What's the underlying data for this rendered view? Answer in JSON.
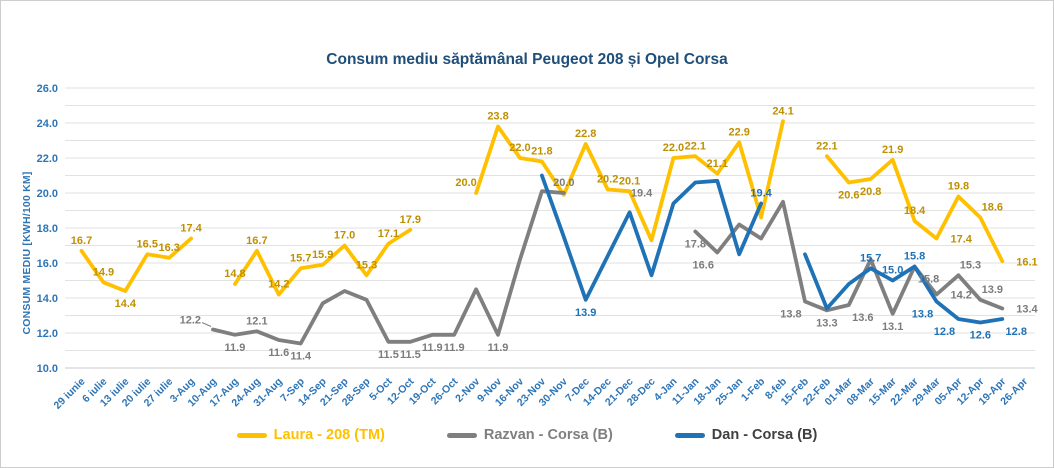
{
  "chart": {
    "title": "Consum mediu săptămânal Peugeot 208 și Opel Corsa",
    "y_axis_title": "CONSUM MEDIU [KWH/100 KM]",
    "title_color": "#1F4E79",
    "axis_color": "#2E75B6"
  },
  "chart_data": {
    "type": "line",
    "title": "Consum mediu săptămânal Peugeot 208 și Opel Corsa",
    "xlabel": "",
    "ylabel": "CONSUM MEDIU [KWH/100 KM]",
    "ylim": [
      10.0,
      26.0
    ],
    "y_tick_step": 2.0,
    "grid": true,
    "legend_position": "bottom",
    "y_ticks": [
      "10.0",
      "12.0",
      "14.0",
      "16.0",
      "18.0",
      "20.0",
      "22.0",
      "24.0",
      "26.0"
    ],
    "categories": [
      "29 iunie",
      "6 iulie",
      "13 iulie",
      "20 iulie",
      "27 iulie",
      "3-Aug",
      "10-Aug",
      "17-Aug",
      "24-Aug",
      "31-Aug",
      "7-Sep",
      "14-Sep",
      "21-Sep",
      "28-Sep",
      "5-Oct",
      "12-Oct",
      "19-Oct",
      "26-Oct",
      "2-Nov",
      "9-Nov",
      "16-Nov",
      "23-Nov",
      "30-Nov",
      "7-Dec",
      "14-Dec",
      "21-Dec",
      "28-Dec",
      "4-Jan",
      "11-Jan",
      "18-Jan",
      "25-Jan",
      "1-Feb",
      "8-feb",
      "15-Feb",
      "22-Feb",
      "01-Mar",
      "08-Mar",
      "15-Mar",
      "22-Mar",
      "29-Mar",
      "05-Apr",
      "12-Apr",
      "19-Apr",
      "26-Apr"
    ],
    "point_format": "[category_index, value, visible_data_label_or_null, label_position_hint]",
    "series": [
      {
        "name": "Laura - 208 (TM)",
        "color": "#FFC000",
        "label_color": "#BF9000",
        "legend_text_color": "#FFC000",
        "points": [
          [
            0,
            16.7,
            "16.7",
            "a"
          ],
          [
            1,
            14.9,
            "14.9",
            "a"
          ],
          [
            2,
            14.4,
            "14.4",
            "b"
          ],
          [
            3,
            16.5,
            "16.5",
            "a"
          ],
          [
            4,
            16.3,
            "16.3",
            "a"
          ],
          [
            5,
            17.4,
            "17.4",
            "a"
          ],
          [
            7,
            14.8,
            "14.8",
            "a"
          ],
          [
            8,
            16.7,
            "16.7",
            "a"
          ],
          [
            9,
            14.2,
            "14.2",
            "a"
          ],
          [
            10,
            15.7,
            "15.7",
            "a"
          ],
          [
            11,
            15.9,
            "15.9",
            "a"
          ],
          [
            12,
            17.0,
            "17.0",
            "a"
          ],
          [
            13,
            15.3,
            "15.3",
            "a"
          ],
          [
            14,
            17.1,
            "17.1",
            "a"
          ],
          [
            15,
            17.9,
            "17.9",
            "a"
          ],
          [
            18,
            20.0,
            "20.0",
            "al"
          ],
          [
            19,
            23.8,
            "23.8",
            "a"
          ],
          [
            20,
            22.0,
            "22.0",
            "a"
          ],
          [
            21,
            21.8,
            "21.8",
            "a"
          ],
          [
            22,
            19.9,
            null,
            null
          ],
          [
            23,
            22.8,
            "22.8",
            "a"
          ],
          [
            24,
            20.2,
            "20.2",
            "a"
          ],
          [
            25,
            20.1,
            "20.1",
            "a"
          ],
          [
            26,
            17.3,
            null,
            null
          ],
          [
            27,
            22.0,
            "22.0",
            "a"
          ],
          [
            28,
            22.1,
            "22.1",
            "a"
          ],
          [
            29,
            21.1,
            "21.1",
            "a"
          ],
          [
            30,
            22.9,
            "22.9",
            "a"
          ],
          [
            31,
            18.6,
            null,
            null
          ],
          [
            32,
            24.1,
            "24.1",
            "a"
          ],
          [
            34,
            22.1,
            "22.1",
            "a"
          ],
          [
            35,
            20.6,
            "20.6",
            "b"
          ],
          [
            36,
            20.8,
            "20.8",
            "b"
          ],
          [
            37,
            21.9,
            "21.9",
            "a"
          ],
          [
            38,
            18.4,
            "18.4",
            "a"
          ],
          [
            39,
            17.4,
            "17.4",
            "r"
          ],
          [
            40,
            19.8,
            "19.8",
            "a"
          ],
          [
            41,
            18.6,
            "18.6",
            "ar"
          ],
          [
            42,
            16.1,
            "16.1",
            "r"
          ]
        ]
      },
      {
        "name": "Razvan - Corsa (B)",
        "color": "#7F7F7F",
        "label_color": "#7C7C7C",
        "legend_text_color": "#7F7F7F",
        "points": [
          [
            6,
            12.2,
            "12.2",
            "ld"
          ],
          [
            7,
            11.9,
            "11.9",
            "b"
          ],
          [
            8,
            12.1,
            "12.1",
            "a"
          ],
          [
            9,
            11.6,
            "11.6",
            "b"
          ],
          [
            10,
            11.4,
            "11.4",
            "b"
          ],
          [
            11,
            13.7,
            null,
            null
          ],
          [
            12,
            14.4,
            null,
            null
          ],
          [
            13,
            13.9,
            null,
            null
          ],
          [
            14,
            11.5,
            "11.5",
            "b"
          ],
          [
            15,
            11.5,
            "11.5",
            "b"
          ],
          [
            16,
            11.9,
            "11.9",
            "b"
          ],
          [
            17,
            11.9,
            "11.9",
            "b"
          ],
          [
            18,
            14.5,
            null,
            null
          ],
          [
            19,
            11.9,
            "11.9",
            "b"
          ],
          [
            20,
            16.2,
            null,
            null
          ],
          [
            21,
            20.1,
            null,
            null
          ],
          [
            22,
            20.0,
            "20.0",
            "a"
          ],
          [
            25,
            19.4,
            "19.4",
            "ar"
          ],
          [
            28,
            17.8,
            "17.8",
            "b"
          ],
          [
            29,
            16.6,
            "16.6",
            "bl"
          ],
          [
            30,
            18.2,
            null,
            null
          ],
          [
            31,
            17.4,
            null,
            null
          ],
          [
            32,
            19.5,
            null,
            null
          ],
          [
            33,
            13.8,
            "13.8",
            "bl"
          ],
          [
            34,
            13.3,
            "13.3",
            "b"
          ],
          [
            35,
            13.6,
            "13.6",
            "br"
          ],
          [
            36,
            16.2,
            null,
            null
          ],
          [
            37,
            13.1,
            "13.1",
            "b"
          ],
          [
            38,
            15.8,
            "15.8",
            "br"
          ],
          [
            39,
            14.2,
            "14.2",
            "r"
          ],
          [
            40,
            15.3,
            "15.3",
            "ar"
          ],
          [
            41,
            13.9,
            "13.9",
            "ar"
          ],
          [
            42,
            13.4,
            "13.4",
            "r"
          ]
        ]
      },
      {
        "name": "Dan - Corsa (B)",
        "color": "#1F72B6",
        "label_color": "#1F72B6",
        "legend_text_color": "#404040",
        "points": [
          [
            21,
            21.0,
            null,
            null
          ],
          [
            22,
            17.5,
            null,
            null
          ],
          [
            23,
            13.9,
            "13.9",
            "b"
          ],
          [
            24,
            16.4,
            null,
            null
          ],
          [
            25,
            18.9,
            null,
            null
          ],
          [
            26,
            15.3,
            null,
            null
          ],
          [
            27,
            19.4,
            null,
            null
          ],
          [
            28,
            20.6,
            null,
            null
          ],
          [
            29,
            20.7,
            null,
            null
          ],
          [
            30,
            16.5,
            null,
            null
          ],
          [
            31,
            19.4,
            "19.4",
            "a"
          ],
          [
            33,
            16.5,
            null,
            null
          ],
          [
            34,
            13.4,
            null,
            null
          ],
          [
            35,
            14.8,
            null,
            null
          ],
          [
            36,
            15.7,
            "15.7",
            "a"
          ],
          [
            37,
            15.0,
            "15.0",
            "a"
          ],
          [
            38,
            15.8,
            "15.8",
            "a"
          ],
          [
            39,
            13.8,
            "13.8",
            "bl"
          ],
          [
            40,
            12.8,
            "12.8",
            "bl"
          ],
          [
            41,
            12.6,
            "12.6",
            "b"
          ],
          [
            42,
            12.8,
            "12.8",
            "br"
          ]
        ]
      }
    ]
  }
}
